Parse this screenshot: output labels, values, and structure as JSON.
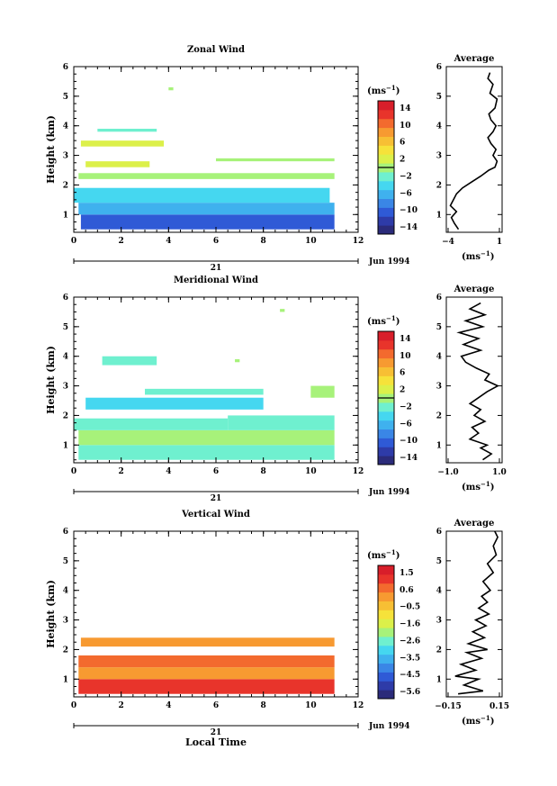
{
  "chart_data": [
    {
      "type": "heatmap",
      "title": "Zonal Wind",
      "ylabel": "Height (km)",
      "xlim": [
        0,
        12
      ],
      "ylim": [
        0.4,
        6
      ],
      "x_ticks": [
        "0",
        "2",
        "4",
        "6",
        "8",
        "10",
        "12"
      ],
      "y_ticks": [
        "1",
        "2",
        "3",
        "4",
        "5",
        "6"
      ],
      "date_label": "Jun 1994",
      "date_tick": "21",
      "colorbar": {
        "unit": "(ms",
        "unit_exp": "−1",
        "unit_close": ")",
        "labels": [
          "14",
          "10",
          "6",
          "2",
          "−2",
          "−6",
          "−10",
          "−14"
        ],
        "range": [
          -16,
          16
        ],
        "marker": 0
      },
      "profile": {
        "title": "Average",
        "xlim": [
          -4,
          1.5
        ],
        "x_ticks": [
          "−4",
          "1"
        ],
        "unit": "(ms",
        "unit_exp": "−1",
        "unit_close": ")",
        "points": [
          [
            -2.8,
            0.5
          ],
          [
            -3.2,
            0.7
          ],
          [
            -3.5,
            0.9
          ],
          [
            -3.0,
            1.1
          ],
          [
            -3.6,
            1.3
          ],
          [
            -3.3,
            1.5
          ],
          [
            -3.0,
            1.7
          ],
          [
            -2.4,
            1.9
          ],
          [
            -1.5,
            2.1
          ],
          [
            -0.6,
            2.3
          ],
          [
            0.2,
            2.5
          ],
          [
            0.8,
            2.6
          ],
          [
            1.0,
            2.8
          ],
          [
            0.6,
            3.0
          ],
          [
            0.9,
            3.2
          ],
          [
            0.4,
            3.4
          ],
          [
            0.1,
            3.6
          ],
          [
            0.6,
            3.8
          ],
          [
            0.9,
            4.0
          ],
          [
            0.4,
            4.2
          ],
          [
            0.2,
            4.4
          ],
          [
            0.8,
            4.6
          ],
          [
            1.0,
            4.9
          ],
          [
            0.3,
            5.1
          ],
          [
            0.6,
            5.4
          ],
          [
            0.1,
            5.6
          ],
          [
            0.3,
            5.8
          ]
        ]
      },
      "bands": [
        {
          "x0": 0.3,
          "x1": 11.0,
          "y0": 0.5,
          "y1": 1.0,
          "v": -10
        },
        {
          "x0": 0.2,
          "x1": 11.0,
          "y0": 1.0,
          "y1": 1.4,
          "v": -7
        },
        {
          "x0": 0.0,
          "x1": 10.8,
          "y0": 1.4,
          "y1": 1.9,
          "v": -4
        },
        {
          "x0": 0.2,
          "x1": 11.0,
          "y0": 2.2,
          "y1": 2.4,
          "v": -1
        },
        {
          "x0": 0.5,
          "x1": 3.2,
          "y0": 2.6,
          "y1": 2.8,
          "v": 2
        },
        {
          "x0": 6.0,
          "x1": 11.0,
          "y0": 2.8,
          "y1": 2.9,
          "v": 1
        },
        {
          "x0": 0.3,
          "x1": 3.8,
          "y0": 3.3,
          "y1": 3.5,
          "v": 2
        },
        {
          "x0": 1.0,
          "x1": 3.5,
          "y0": 3.8,
          "y1": 3.9,
          "v": -2
        },
        {
          "x0": 4.0,
          "x1": 4.2,
          "y0": 5.2,
          "y1": 5.3,
          "v": -1
        }
      ]
    },
    {
      "type": "heatmap",
      "title": "Meridional Wind",
      "ylabel": "Height (km)",
      "xlim": [
        0,
        12
      ],
      "ylim": [
        0.4,
        6
      ],
      "x_ticks": [
        "0",
        "2",
        "4",
        "6",
        "8",
        "10",
        "12"
      ],
      "y_ticks": [
        "1",
        "2",
        "3",
        "4",
        "5",
        "6"
      ],
      "date_label": "Jun 1994",
      "date_tick": "21",
      "colorbar": {
        "unit": "(ms",
        "unit_exp": "−1",
        "unit_close": ")",
        "labels": [
          "14",
          "10",
          "6",
          "2",
          "−2",
          "−6",
          "−10",
          "−14"
        ],
        "range": [
          -16,
          16
        ],
        "marker": 0
      },
      "profile": {
        "title": "Average",
        "xlim": [
          -1.4,
          1.2
        ],
        "x_ticks": [
          "−1.0",
          "1.0"
        ],
        "unit": "(ms",
        "unit_exp": "−1",
        "unit_close": ")",
        "points": [
          [
            0.3,
            0.5
          ],
          [
            0.7,
            0.7
          ],
          [
            0.2,
            0.9
          ],
          [
            0.5,
            1.0
          ],
          [
            -0.3,
            1.2
          ],
          [
            0.1,
            1.4
          ],
          [
            -0.2,
            1.6
          ],
          [
            0.4,
            1.8
          ],
          [
            -0.1,
            2.0
          ],
          [
            0.2,
            2.2
          ],
          [
            -0.3,
            2.4
          ],
          [
            0.1,
            2.6
          ],
          [
            0.5,
            2.8
          ],
          [
            1.0,
            3.0
          ],
          [
            0.4,
            3.2
          ],
          [
            0.6,
            3.4
          ],
          [
            0.0,
            3.6
          ],
          [
            -0.5,
            3.8
          ],
          [
            -0.7,
            4.0
          ],
          [
            0.2,
            4.2
          ],
          [
            -0.6,
            4.4
          ],
          [
            0.1,
            4.6
          ],
          [
            -0.8,
            4.8
          ],
          [
            0.3,
            5.0
          ],
          [
            -0.5,
            5.2
          ],
          [
            0.4,
            5.4
          ],
          [
            -0.3,
            5.6
          ],
          [
            0.2,
            5.8
          ]
        ]
      },
      "bands": [
        {
          "x0": 0.2,
          "x1": 11.0,
          "y0": 0.5,
          "y1": 1.0,
          "v": -3
        },
        {
          "x0": 0.2,
          "x1": 11.0,
          "y0": 1.0,
          "y1": 1.5,
          "v": -1
        },
        {
          "x0": 0.0,
          "x1": 6.5,
          "y0": 1.5,
          "y1": 1.9,
          "v": -3
        },
        {
          "x0": 6.5,
          "x1": 11.0,
          "y0": 1.5,
          "y1": 2.0,
          "v": -2
        },
        {
          "x0": 0.5,
          "x1": 8.0,
          "y0": 2.2,
          "y1": 2.6,
          "v": -4
        },
        {
          "x0": 3.0,
          "x1": 8.0,
          "y0": 2.7,
          "y1": 2.9,
          "v": -3
        },
        {
          "x0": 10.0,
          "x1": 11.0,
          "y0": 2.6,
          "y1": 3.0,
          "v": 1
        },
        {
          "x0": 1.2,
          "x1": 3.5,
          "y0": 3.7,
          "y1": 4.0,
          "v": -3
        },
        {
          "x0": 6.8,
          "x1": 7.0,
          "y0": 3.8,
          "y1": 3.9,
          "v": 1
        },
        {
          "x0": 8.7,
          "x1": 8.9,
          "y0": 5.5,
          "y1": 5.6,
          "v": -1
        }
      ]
    },
    {
      "type": "heatmap",
      "title": "Vertical Wind",
      "ylabel": "Height (km)",
      "xlabel": "Local Time",
      "xlim": [
        0,
        12
      ],
      "ylim": [
        0.4,
        6
      ],
      "x_ticks": [
        "0",
        "2",
        "4",
        "6",
        "8",
        "10",
        "12"
      ],
      "y_ticks": [
        "1",
        "2",
        "3",
        "4",
        "5",
        "6"
      ],
      "date_label": "Jun 1994",
      "date_tick": "21",
      "colorbar": {
        "unit": "(ms",
        "unit_exp": "−1",
        "unit_close": ")",
        "labels": [
          "1.5",
          "0.6",
          "−0.5",
          "−1.6",
          "−2.6",
          "−3.5",
          "−4.5",
          "−5.6"
        ],
        "range": [
          -6.0,
          2.0
        ],
        "marker": null
      },
      "profile": {
        "title": "Average",
        "xlim": [
          -0.2,
          0.18
        ],
        "x_ticks": [
          "−0.15",
          "0.15"
        ],
        "unit": "(ms",
        "unit_exp": "−1",
        "unit_close": ")",
        "points": [
          [
            -0.12,
            0.5
          ],
          [
            0.05,
            0.6
          ],
          [
            -0.08,
            0.8
          ],
          [
            0.02,
            1.0
          ],
          [
            -0.14,
            1.1
          ],
          [
            0.0,
            1.3
          ],
          [
            -0.1,
            1.5
          ],
          [
            0.04,
            1.7
          ],
          [
            -0.06,
            1.9
          ],
          [
            0.08,
            2.0
          ],
          [
            -0.05,
            2.2
          ],
          [
            0.06,
            2.4
          ],
          [
            -0.02,
            2.6
          ],
          [
            0.07,
            2.8
          ],
          [
            0.0,
            3.0
          ],
          [
            0.09,
            3.2
          ],
          [
            0.02,
            3.4
          ],
          [
            0.08,
            3.6
          ],
          [
            0.04,
            3.8
          ],
          [
            0.1,
            4.0
          ],
          [
            0.05,
            4.3
          ],
          [
            0.12,
            4.6
          ],
          [
            0.08,
            4.9
          ],
          [
            0.14,
            5.2
          ],
          [
            0.12,
            5.5
          ],
          [
            0.15,
            5.8
          ],
          [
            0.13,
            6.0
          ]
        ]
      },
      "bands": [
        {
          "x0": 0.2,
          "x1": 11.0,
          "y0": 0.5,
          "y1": 1.0,
          "v": 1.0
        },
        {
          "x0": 0.2,
          "x1": 11.0,
          "y0": 1.0,
          "y1": 1.4,
          "v": 0.3
        },
        {
          "x0": 0.2,
          "x1": 11.0,
          "y0": 1.4,
          "y1": 1.8,
          "v": 0.8
        },
        {
          "x0": 0.3,
          "x1": 11.0,
          "y0": 2.1,
          "y1": 2.4,
          "v": 0.2
        }
      ]
    }
  ]
}
